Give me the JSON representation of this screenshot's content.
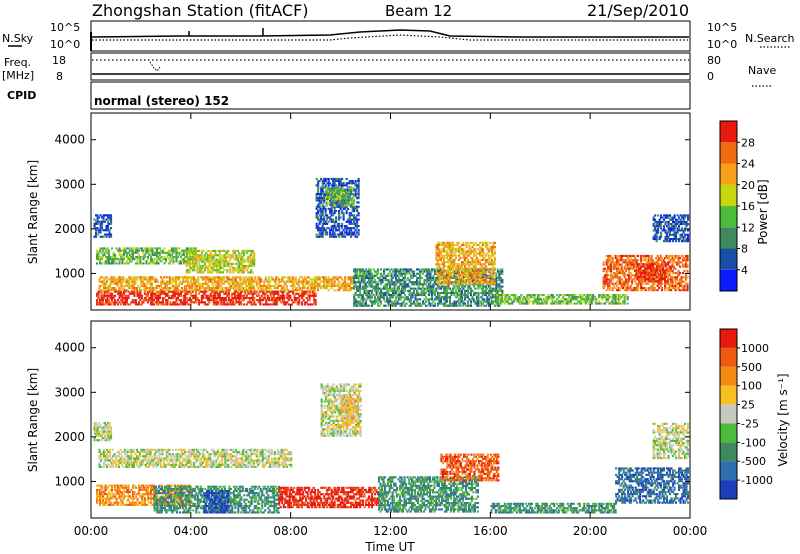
{
  "header": {
    "station": "Zhongshan Station (fitACF)",
    "beam": "Beam 12",
    "date": "21/Sep/2010"
  },
  "summary_panels": {
    "nsky_label": "N.Sky",
    "nsearch_label": "N.Search",
    "scale_top_left": "10^5",
    "scale_bottom_left": "10^0",
    "scale_top_right": "10^5",
    "scale_bottom_right": "10^0",
    "freq_label_top": "Freq.",
    "freq_label_bottom": "[MHz]",
    "freq_ticks": [
      "18",
      "8"
    ],
    "nave_label": "Nave",
    "nave_ticks": [
      "80",
      "0"
    ],
    "cpid_label": "CPID",
    "cpid_text": "normal (stereo) 152"
  },
  "chart_data": [
    {
      "type": "heatmap",
      "name": "power-panel",
      "xlabel": "",
      "ylabel": "Slant Range [km]",
      "x_ticks": [
        "00:00",
        "04:00",
        "08:00",
        "12:00",
        "16:00",
        "20:00",
        "00:00"
      ],
      "xlim": [
        0,
        24
      ],
      "y_ticks": [
        1000,
        2000,
        3000,
        4000
      ],
      "ylim": [
        180,
        4600
      ],
      "colorbar": {
        "label": "Power [dB]",
        "ticks": [
          "4",
          "8",
          "12",
          "16",
          "20",
          "24",
          "28"
        ],
        "colors": [
          "#0a1bff",
          "#1a4fa8",
          "#3f8a5c",
          "#4bbd3a",
          "#c8d60f",
          "#f5a018",
          "#f06a10",
          "#e81a10"
        ]
      },
      "regions": [
        {
          "t0": 0.2,
          "t1": 9.0,
          "r0": 280,
          "r1": 600,
          "level": 7
        },
        {
          "t0": 0.3,
          "t1": 10.5,
          "r0": 600,
          "r1": 900,
          "level": 5
        },
        {
          "t0": 0.2,
          "t1": 4.2,
          "r0": 1200,
          "r1": 1550,
          "level": 3
        },
        {
          "t0": 3.8,
          "t1": 6.5,
          "r0": 1000,
          "r1": 1500,
          "level": 4
        },
        {
          "t0": 0.1,
          "t1": 0.8,
          "r0": 1800,
          "r1": 2300,
          "level": 1
        },
        {
          "t0": 9.0,
          "t1": 10.7,
          "r0": 1800,
          "r1": 3100,
          "level": 1
        },
        {
          "t0": 9.4,
          "t1": 10.5,
          "r0": 2500,
          "r1": 2900,
          "level": 3
        },
        {
          "t0": 10.5,
          "t1": 16.5,
          "r0": 250,
          "r1": 1100,
          "level": 2
        },
        {
          "t0": 13.8,
          "t1": 16.2,
          "r0": 750,
          "r1": 1700,
          "level": 5
        },
        {
          "t0": 16.0,
          "t1": 21.5,
          "r0": 300,
          "r1": 500,
          "level": 3
        },
        {
          "t0": 20.5,
          "t1": 23.9,
          "r0": 600,
          "r1": 1400,
          "level": 6
        },
        {
          "t0": 21.8,
          "t1": 23.0,
          "r0": 800,
          "r1": 1200,
          "level": 7
        },
        {
          "t0": 22.5,
          "t1": 23.9,
          "r0": 1700,
          "r1": 2300,
          "level": 1
        }
      ]
    },
    {
      "type": "heatmap",
      "name": "velocity-panel",
      "xlabel": "Time UT",
      "ylabel": "Slant Range [km]",
      "x_ticks": [
        "00:00",
        "04:00",
        "08:00",
        "12:00",
        "16:00",
        "20:00",
        "00:00"
      ],
      "xlim": [
        0,
        24
      ],
      "y_ticks": [
        1000,
        2000,
        3000,
        4000
      ],
      "ylim": [
        180,
        4600
      ],
      "colorbar": {
        "label": "Velocity  [m s⁻¹]",
        "ticks": [
          "1000",
          "500",
          "100",
          "25",
          "-25",
          "-100",
          "-500",
          "-1000"
        ],
        "colors": [
          "#1a3fb8",
          "#2c6fae",
          "#3f8a5c",
          "#4bbd3a",
          "#c8c8c0",
          "#f5c020",
          "#f58a10",
          "#f05a10",
          "#e81a10"
        ]
      },
      "regions": [
        {
          "t0": 0.2,
          "t1": 4.0,
          "r0": 450,
          "r1": 900,
          "level": 6
        },
        {
          "t0": 2.5,
          "t1": 7.5,
          "r0": 280,
          "r1": 900,
          "level": 2
        },
        {
          "t0": 4.5,
          "t1": 5.5,
          "r0": 280,
          "r1": 800,
          "level": 0
        },
        {
          "t0": 7.5,
          "t1": 11.5,
          "r0": 400,
          "r1": 850,
          "level": 8
        },
        {
          "t0": 0.3,
          "t1": 8.0,
          "r0": 1300,
          "r1": 1700,
          "level": 4
        },
        {
          "t0": 0.1,
          "t1": 0.8,
          "r0": 1900,
          "r1": 2300,
          "level": 4
        },
        {
          "t0": 9.2,
          "t1": 10.8,
          "r0": 2000,
          "r1": 3200,
          "level": 4
        },
        {
          "t0": 10.0,
          "t1": 10.7,
          "r0": 2200,
          "r1": 2900,
          "level": 5
        },
        {
          "t0": 11.5,
          "t1": 15.5,
          "r0": 300,
          "r1": 1100,
          "level": 2
        },
        {
          "t0": 14.0,
          "t1": 16.3,
          "r0": 1000,
          "r1": 1600,
          "level": 7
        },
        {
          "t0": 16.0,
          "t1": 21.0,
          "r0": 280,
          "r1": 500,
          "level": 2
        },
        {
          "t0": 21.0,
          "t1": 23.9,
          "r0": 500,
          "r1": 1300,
          "level": 1
        },
        {
          "t0": 22.5,
          "t1": 23.9,
          "r0": 1500,
          "r1": 2300,
          "level": 4
        }
      ]
    }
  ]
}
